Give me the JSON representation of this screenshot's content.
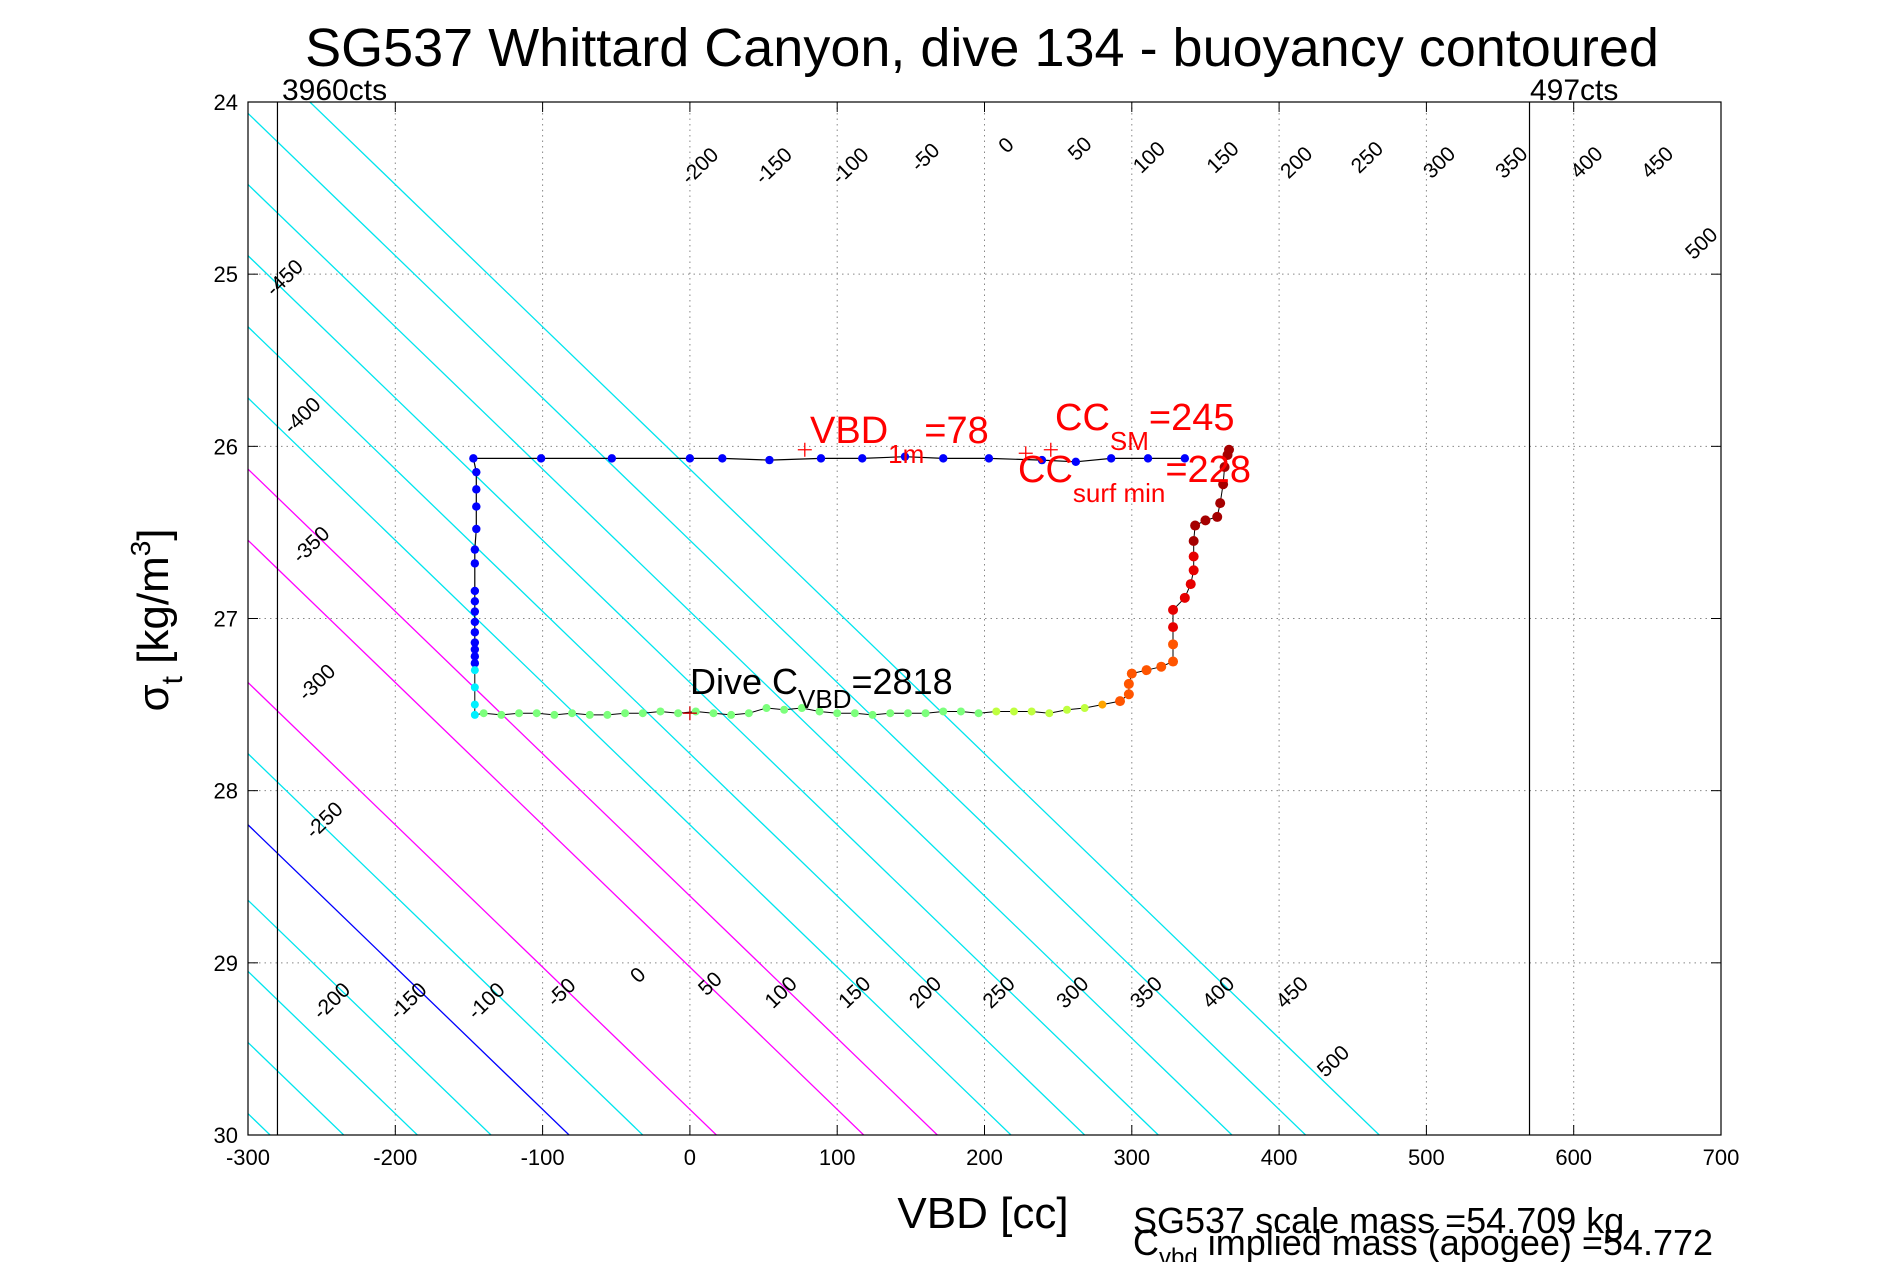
{
  "chart_data": {
    "type": "scatter",
    "title": "SG537 Whittard Canyon, dive 134 - buoyancy contoured",
    "xlabel": "VBD [cc]",
    "ylabel": {
      "main": "σ",
      "sub": "t",
      "units_pre": " [kg/m",
      "sup": "3",
      "units_post": "]"
    },
    "xlim": [
      -300,
      700
    ],
    "ylim": [
      24,
      30
    ],
    "y_reversed": true,
    "grid": true,
    "xticks": [
      -300,
      -200,
      -100,
      0,
      100,
      200,
      300,
      400,
      500,
      600,
      700
    ],
    "yticks": [
      24,
      25,
      26,
      27,
      28,
      29,
      30
    ],
    "vertical_lines": [
      {
        "x": -280,
        "label": "3960cts"
      },
      {
        "x": 570,
        "label": "497cts"
      }
    ],
    "contours": {
      "levels": [
        -450,
        -400,
        -350,
        -300,
        -250,
        -200,
        -150,
        -100,
        -50,
        0,
        50,
        100,
        150,
        200,
        250,
        300,
        350,
        400,
        450,
        500
      ],
      "slope_cc_per_sigma": 121,
      "ref_sigma": 30,
      "intercept_at_ref": {
        "-450": -555,
        "-400": -505,
        "-350": -455,
        "-300": -405,
        "-250": -355,
        "-200": -285,
        "-150": -235,
        "-100": -185,
        "-50": -135,
        "0": -82,
        "50": -32,
        "100": 18,
        "150": 118,
        "200": 168,
        "250": 218,
        "300": 268,
        "350": 318,
        "400": 368,
        "450": 418,
        "500": 468
      },
      "highlight": {
        "0": "#0000ff",
        "100": "#ff00ff",
        "150": "#ff00ff",
        "200": "#ff00ff"
      },
      "default_color": "#00e5ee",
      "top_labels": [
        {
          "level": "-200",
          "x": 10,
          "y": 24.4
        },
        {
          "level": "-150",
          "x": 60,
          "y": 24.4
        },
        {
          "level": "-100",
          "x": 112,
          "y": 24.4
        },
        {
          "level": "-50",
          "x": 163,
          "y": 24.35
        },
        {
          "level": "0",
          "x": 218,
          "y": 24.28
        },
        {
          "level": "50",
          "x": 268,
          "y": 24.3
        },
        {
          "level": "100",
          "x": 315,
          "y": 24.35
        },
        {
          "level": "150",
          "x": 365,
          "y": 24.35
        },
        {
          "level": "200",
          "x": 415,
          "y": 24.38
        },
        {
          "level": "250",
          "x": 463,
          "y": 24.35
        },
        {
          "level": "300",
          "x": 512,
          "y": 24.38
        },
        {
          "level": "350",
          "x": 561,
          "y": 24.38
        },
        {
          "level": "400",
          "x": 612,
          "y": 24.38
        },
        {
          "level": "450",
          "x": 660,
          "y": 24.38
        },
        {
          "level": "500",
          "x": 690,
          "y": 24.85
        }
      ],
      "left_labels": [
        {
          "level": "-450",
          "x": -272,
          "y": 25.05
        },
        {
          "level": "-400",
          "x": -260,
          "y": 25.85
        },
        {
          "level": "-350",
          "x": -254,
          "y": 26.6
        },
        {
          "level": "-300",
          "x": -250,
          "y": 27.4
        },
        {
          "level": "-250",
          "x": -245,
          "y": 28.2
        }
      ],
      "bottom_labels": [
        {
          "level": "-200",
          "x": -240,
          "y": 29.25
        },
        {
          "level": "-150",
          "x": -188,
          "y": 29.25
        },
        {
          "level": "-100",
          "x": -135,
          "y": 29.25
        },
        {
          "level": "-50",
          "x": -84,
          "y": 29.2
        },
        {
          "level": "0",
          "x": -32,
          "y": 29.1
        },
        {
          "level": "50",
          "x": 17,
          "y": 29.15
        },
        {
          "level": "100",
          "x": 65,
          "y": 29.2
        },
        {
          "level": "150",
          "x": 115,
          "y": 29.2
        },
        {
          "level": "200",
          "x": 163,
          "y": 29.2
        },
        {
          "level": "250",
          "x": 213,
          "y": 29.2
        },
        {
          "level": "300",
          "x": 263,
          "y": 29.2
        },
        {
          "level": "350",
          "x": 313,
          "y": 29.2
        },
        {
          "level": "400",
          "x": 362,
          "y": 29.2
        },
        {
          "level": "450",
          "x": 412,
          "y": 29.2
        },
        {
          "level": "500",
          "x": 440,
          "y": 29.6
        }
      ]
    },
    "climb": {
      "color": "#0000ff",
      "points": [
        [
          336,
          26.07
        ],
        [
          311,
          26.07
        ],
        [
          286,
          26.07
        ],
        [
          262,
          26.09
        ],
        [
          239,
          26.08
        ],
        [
          203,
          26.07
        ],
        [
          172,
          26.07
        ],
        [
          146,
          26.06
        ],
        [
          117,
          26.07
        ],
        [
          89,
          26.07
        ],
        [
          54,
          26.08
        ],
        [
          22,
          26.07
        ],
        [
          0,
          26.07
        ],
        [
          -53,
          26.07
        ],
        [
          -101,
          26.07
        ],
        [
          -147,
          26.07
        ],
        [
          -145,
          26.15
        ],
        [
          -145,
          26.25
        ],
        [
          -145,
          26.35
        ],
        [
          -145,
          26.48
        ],
        [
          -146,
          26.6
        ],
        [
          -146,
          26.68
        ],
        [
          -146,
          26.84
        ],
        [
          -146,
          26.9
        ],
        [
          -146,
          26.96
        ],
        [
          -146,
          27.02
        ],
        [
          -146,
          27.08
        ],
        [
          -146,
          27.14
        ],
        [
          -146,
          27.18
        ],
        [
          -146,
          27.22
        ],
        [
          -146,
          27.26
        ]
      ]
    },
    "dive": {
      "colors": [
        "#00f0ff",
        "#7cff7c",
        "#bfff3f",
        "#ffff00",
        "#ffa500",
        "#ff5500",
        "#e60000",
        "#a50000"
      ],
      "points": [
        [
          -146,
          27.3
        ],
        [
          -146,
          27.4
        ],
        [
          -146,
          27.5
        ],
        [
          -146,
          27.56
        ],
        [
          -140,
          27.55
        ],
        [
          -128,
          27.56
        ],
        [
          -116,
          27.55
        ],
        [
          -104,
          27.55
        ],
        [
          -92,
          27.56
        ],
        [
          -80,
          27.55
        ],
        [
          -68,
          27.56
        ],
        [
          -56,
          27.56
        ],
        [
          -44,
          27.55
        ],
        [
          -32,
          27.55
        ],
        [
          -20,
          27.54
        ],
        [
          -8,
          27.55
        ],
        [
          4,
          27.54
        ],
        [
          16,
          27.55
        ],
        [
          28,
          27.56
        ],
        [
          40,
          27.55
        ],
        [
          52,
          27.52
        ],
        [
          64,
          27.53
        ],
        [
          76,
          27.52
        ],
        [
          88,
          27.54
        ],
        [
          100,
          27.55
        ],
        [
          112,
          27.55
        ],
        [
          124,
          27.56
        ],
        [
          136,
          27.55
        ],
        [
          148,
          27.55
        ],
        [
          160,
          27.55
        ],
        [
          172,
          27.54
        ],
        [
          184,
          27.54
        ],
        [
          196,
          27.55
        ],
        [
          208,
          27.54
        ],
        [
          220,
          27.54
        ],
        [
          232,
          27.54
        ],
        [
          244,
          27.55
        ],
        [
          256,
          27.53
        ],
        [
          268,
          27.52
        ],
        [
          280,
          27.5
        ],
        [
          292,
          27.48
        ],
        [
          298,
          27.44
        ],
        [
          298,
          27.38
        ],
        [
          300,
          27.32
        ],
        [
          310,
          27.3
        ],
        [
          320,
          27.28
        ],
        [
          328,
          27.25
        ],
        [
          328,
          27.15
        ],
        [
          328,
          27.05
        ],
        [
          328,
          26.95
        ],
        [
          336,
          26.88
        ],
        [
          340,
          26.8
        ],
        [
          342,
          26.72
        ],
        [
          342,
          26.64
        ],
        [
          342,
          26.55
        ],
        [
          343,
          26.46
        ],
        [
          350,
          26.43
        ],
        [
          358,
          26.41
        ],
        [
          360,
          26.33
        ],
        [
          362,
          26.22
        ],
        [
          363,
          26.12
        ],
        [
          365,
          26.05
        ],
        [
          366,
          26.02
        ]
      ]
    },
    "markers": [
      {
        "name": "vbd-1m",
        "x": 78,
        "y": 26.02
      },
      {
        "name": "cc-sm",
        "x": 245,
        "y": 26.02
      },
      {
        "name": "cc-surf-min",
        "x": 228,
        "y": 26.04
      },
      {
        "name": "dive-cvbd",
        "x": 0,
        "y": 27.55
      }
    ],
    "annotations": {
      "vbd_1m": {
        "main": "VBD",
        "sub": "1m",
        "rest": "=78"
      },
      "cc_sm": {
        "main": "CC",
        "sub": "SM",
        "rest": "=245"
      },
      "cc_surf_min": {
        "main": "CC",
        "sub": "surf min",
        "rest": "=228"
      },
      "dive_cvbd": {
        "main": "Dive C",
        "sub": "VBD",
        "rest": "=2818"
      }
    },
    "footer": {
      "line1": "SG537 scale mass =54.709 kg",
      "line2_main": "C",
      "line2_sub": "vbd",
      "line2_rest": " implied mass (apogee) =54.772"
    }
  }
}
